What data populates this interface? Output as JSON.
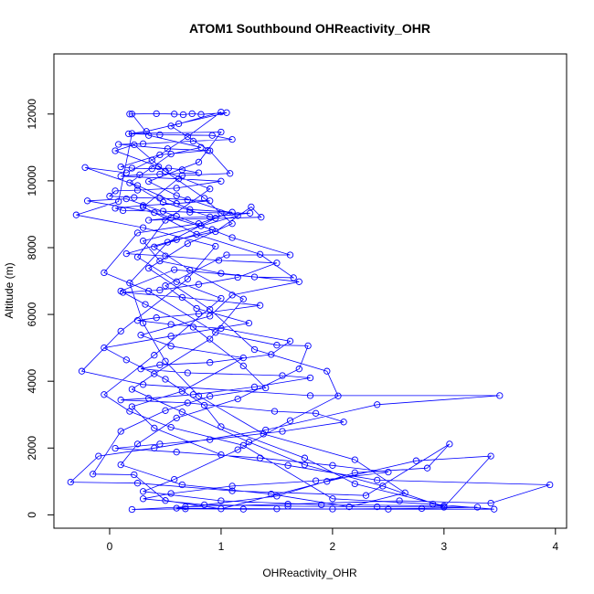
{
  "chart_data": {
    "type": "line",
    "title": "ATOM1 Southbound OHReactivity_OHR",
    "xlabel": "OHReactivity_OHR",
    "ylabel": "Altitude (m)",
    "xlim": [
      -0.5,
      4.1
    ],
    "ylim": [
      -400,
      13800
    ],
    "xticks": [
      0,
      1,
      2,
      3,
      4
    ],
    "yticks": [
      0,
      2000,
      4000,
      6000,
      8000,
      10000,
      12000
    ],
    "grid": false,
    "legend": "none",
    "color": "#0000ff",
    "series": [
      {
        "points": [
          [
            0.18,
            12000
          ],
          [
            0.42,
            12010
          ],
          [
            0.58,
            12000
          ],
          [
            0.66,
            11980
          ],
          [
            0.74,
            12010
          ],
          [
            0.82,
            11990
          ],
          [
            1.05,
            12040
          ],
          [
            0.62,
            11710
          ],
          [
            0.33,
            11480
          ],
          [
            0.17,
            11410
          ],
          [
            0.45,
            11380
          ],
          [
            0.92,
            11360
          ],
          [
            1.1,
            11240
          ],
          [
            0.75,
            11190
          ],
          [
            0.3,
            11110
          ],
          [
            0.08,
            11090
          ],
          [
            0.52,
            10960
          ],
          [
            0.88,
            10910
          ],
          [
            0.45,
            10780
          ],
          [
            0.1,
            10420
          ],
          [
            0.2,
            10380
          ],
          [
            0.38,
            10360
          ],
          [
            0.53,
            10380
          ],
          [
            0.65,
            10330
          ],
          [
            0.8,
            10240
          ],
          [
            0.45,
            10200
          ],
          [
            0.27,
            10180
          ],
          [
            0.1,
            10140
          ],
          [
            0.62,
            10060
          ],
          [
            1.0,
            9990
          ],
          [
            0.6,
            9780
          ],
          [
            0.25,
            9720
          ],
          [
            0.05,
            9700
          ],
          [
            0.0,
            9540
          ],
          [
            0.22,
            9500
          ],
          [
            0.45,
            9480
          ],
          [
            0.7,
            9430
          ],
          [
            0.9,
            9400
          ],
          [
            0.6,
            9320
          ],
          [
            0.3,
            9260
          ],
          [
            0.05,
            9180
          ],
          [
            0.12,
            9110
          ],
          [
            0.48,
            9090
          ],
          [
            0.72,
            9060
          ],
          [
            1.0,
            9040
          ],
          [
            1.26,
            9030
          ],
          [
            0.9,
            8920
          ],
          [
            0.55,
            8890
          ],
          [
            0.35,
            8820
          ],
          [
            1.36,
            8910
          ],
          [
            1.27,
            9220
          ],
          [
            0.95,
            8480
          ],
          [
            0.6,
            8240
          ],
          [
            0.15,
            7820
          ],
          [
            0.5,
            7750
          ],
          [
            0.98,
            7620
          ],
          [
            1.5,
            7540
          ],
          [
            1.15,
            7110
          ],
          [
            0.8,
            6900
          ],
          [
            0.45,
            6730
          ],
          [
            0.12,
            6660
          ],
          [
            0.65,
            6510
          ],
          [
            1.35,
            6270
          ],
          [
            0.8,
            6020
          ],
          [
            0.42,
            5900
          ],
          [
            0.25,
            5820
          ],
          [
            0.55,
            5700
          ],
          [
            1.0,
            5580
          ],
          [
            1.62,
            5200
          ],
          [
            1.45,
            4800
          ],
          [
            0.9,
            4560
          ],
          [
            0.45,
            4490
          ],
          [
            0.28,
            4370
          ],
          [
            0.7,
            4250
          ],
          [
            1.55,
            4170
          ],
          [
            1.8,
            4100
          ],
          [
            1.3,
            3830
          ],
          [
            0.75,
            3600
          ],
          [
            0.35,
            3490
          ],
          [
            0.1,
            3440
          ],
          [
            0.7,
            3350
          ],
          [
            1.48,
            3100
          ],
          [
            1.85,
            3040
          ],
          [
            2.1,
            2780
          ],
          [
            1.55,
            2500
          ],
          [
            0.9,
            2250
          ],
          [
            0.45,
            2120
          ],
          [
            0.05,
            1990
          ],
          [
            0.6,
            1880
          ],
          [
            1.35,
            1700
          ],
          [
            2.0,
            1480
          ],
          [
            2.5,
            1280
          ],
          [
            1.85,
            1020
          ],
          [
            1.1,
            860
          ],
          [
            0.55,
            640
          ],
          [
            0.3,
            480
          ],
          [
            0.85,
            300
          ],
          [
            1.6,
            260
          ],
          [
            2.4,
            240
          ],
          [
            3.3,
            230
          ],
          [
            2.8,
            190
          ],
          [
            2.0,
            175
          ],
          [
            1.2,
            170
          ],
          [
            0.68,
            180
          ],
          [
            0.2,
            160
          ],
          [
            0.68,
            240
          ],
          [
            1.6,
            320
          ],
          [
            2.6,
            420
          ],
          [
            3.42,
            350
          ],
          [
            3.95,
            900
          ],
          [
            2.4,
            1040
          ],
          [
            1.6,
            1480
          ],
          [
            1.0,
            1800
          ],
          [
            0.4,
            2600
          ],
          [
            0.2,
            3240
          ],
          [
            0.65,
            3700
          ],
          [
            1.2,
            4700
          ],
          [
            0.55,
            5050
          ],
          [
            0.28,
            5380
          ],
          [
            0.9,
            5950
          ],
          [
            1.1,
            6580
          ],
          [
            1.7,
            6980
          ],
          [
            1.0,
            7230
          ],
          [
            0.45,
            7600
          ],
          [
            0.3,
            8200
          ],
          [
            0.82,
            8650
          ],
          [
            1.15,
            8960
          ],
          [
            0.6,
            9560
          ],
          [
            0.35,
            9980
          ],
          [
            0.8,
            10560
          ],
          [
            1.0,
            11460
          ],
          [
            0.2,
            11420
          ],
          [
            0.08,
            9380
          ],
          [
            -0.3,
            8980
          ],
          [
            0.3,
            8600
          ],
          [
            0.95,
            8040
          ],
          [
            0.7,
            7060
          ],
          [
            0.1,
            5500
          ],
          [
            -0.25,
            4300
          ],
          [
            0.3,
            3900
          ],
          [
            1.8,
            3570
          ],
          [
            3.5,
            3570
          ],
          [
            2.4,
            3300
          ],
          [
            1.4,
            2540
          ],
          [
            0.4,
            2000
          ],
          [
            -0.1,
            1760
          ],
          [
            -0.35,
            980
          ],
          [
            0.25,
            950
          ],
          [
            1.1,
            720
          ],
          [
            2.3,
            580
          ],
          [
            3.05,
            2120
          ],
          [
            2.85,
            1400
          ],
          [
            2.2,
            1260
          ],
          [
            1.5,
            560
          ],
          [
            0.6,
            200
          ],
          [
            1.5,
            180
          ],
          [
            2.5,
            170
          ],
          [
            3.45,
            170
          ],
          [
            2.9,
            320
          ],
          [
            2.0,
            480
          ],
          [
            1.2,
            2080
          ],
          [
            0.55,
            2620
          ],
          [
            0.18,
            3100
          ],
          [
            -0.05,
            3600
          ],
          [
            0.4,
            4780
          ],
          [
            1.0,
            6480
          ],
          [
            0.6,
            6980
          ],
          [
            0.25,
            7720
          ],
          [
            0.5,
            8820
          ],
          [
            0.9,
            9760
          ],
          [
            0.5,
            10280
          ],
          [
            0.22,
            11080
          ],
          [
            0.05,
            10900
          ],
          [
            0.44,
            10420
          ],
          [
            0.85,
            9480
          ],
          [
            1.1,
            8720
          ],
          [
            0.7,
            8120
          ],
          [
            0.35,
            7380
          ],
          [
            0.9,
            6150
          ],
          [
            1.3,
            4950
          ],
          [
            1.95,
            4300
          ],
          [
            2.05,
            3560
          ],
          [
            1.62,
            2820
          ],
          [
            1.15,
            1950
          ],
          [
            0.58,
            1060
          ],
          [
            0.3,
            700
          ],
          [
            1.0,
            420
          ],
          [
            1.9,
            300
          ],
          [
            3.0,
            270
          ],
          [
            2.2,
            930
          ],
          [
            1.75,
            1700
          ],
          [
            1.0,
            2640
          ],
          [
            0.85,
            3280
          ],
          [
            0.5,
            4060
          ],
          [
            0.15,
            4640
          ],
          [
            -0.05,
            5000
          ],
          [
            0.55,
            5350
          ],
          [
            1.25,
            5740
          ],
          [
            0.78,
            6180
          ],
          [
            0.5,
            6860
          ],
          [
            1.05,
            7780
          ],
          [
            1.62,
            7780
          ],
          [
            1.1,
            8300
          ],
          [
            0.6,
            8940
          ],
          [
            0.15,
            9460
          ],
          [
            -0.2,
            9400
          ],
          [
            0.4,
            9050
          ],
          [
            0.92,
            8540
          ],
          [
            0.4,
            8020
          ],
          [
            0.72,
            7320
          ],
          [
            1.2,
            6460
          ],
          [
            0.9,
            5260
          ],
          [
            0.4,
            4220
          ],
          [
            0.2,
            3760
          ],
          [
            0.65,
            3080
          ],
          [
            1.25,
            2180
          ],
          [
            1.75,
            1500
          ],
          [
            2.45,
            860
          ],
          [
            3.0,
            230
          ],
          [
            3.42,
            1760
          ],
          [
            2.75,
            1620
          ],
          [
            1.95,
            1000
          ],
          [
            1.0,
            180
          ],
          [
            0.5,
            430
          ],
          [
            0.22,
            1200
          ],
          [
            -0.15,
            1220
          ],
          [
            0.1,
            2500
          ],
          [
            0.5,
            3120
          ],
          [
            0.9,
            3550
          ],
          [
            1.4,
            3800
          ],
          [
            1.2,
            4460
          ],
          [
            0.75,
            5620
          ],
          [
            0.32,
            6300
          ],
          [
            0.1,
            6700
          ],
          [
            0.58,
            7340
          ],
          [
            1.3,
            7120
          ],
          [
            1.65,
            7100
          ],
          [
            1.35,
            7800
          ],
          [
            0.78,
            8400
          ],
          [
            0.3,
            9220
          ],
          [
            0.65,
            10160
          ],
          [
            1.08,
            10220
          ],
          [
            0.9,
            10900
          ],
          [
            0.55,
            11640
          ],
          [
            1.0,
            12060
          ],
          [
            0.7,
            11320
          ],
          [
            0.38,
            10620
          ],
          [
            0.15,
            10240
          ],
          [
            -0.22,
            10400
          ],
          [
            0.25,
            9860
          ],
          [
            0.72,
            9140
          ],
          [
            1.1,
            9060
          ],
          [
            0.8,
            8720
          ],
          [
            0.25,
            8440
          ],
          [
            -0.05,
            7250
          ],
          [
            0.35,
            6700
          ],
          [
            0.95,
            5460
          ],
          [
            1.5,
            5080
          ],
          [
            1.78,
            5060
          ],
          [
            1.7,
            4370
          ],
          [
            1.15,
            3470
          ],
          [
            0.6,
            2900
          ],
          [
            0.25,
            2120
          ],
          [
            0.1,
            1500
          ],
          [
            0.65,
            900
          ],
          [
            1.45,
            620
          ],
          [
            2.15,
            240
          ],
          [
            2.65,
            660
          ],
          [
            2.2,
            1650
          ],
          [
            1.38,
            2420
          ],
          [
            0.8,
            3560
          ],
          [
            0.5,
            4600
          ],
          [
            0.3,
            5740
          ],
          [
            0.18,
            6940
          ],
          [
            0.52,
            8160
          ],
          [
            0.95,
            8880
          ],
          [
            0.48,
            9360
          ],
          [
            0.18,
            9940
          ],
          [
            0.55,
            10800
          ],
          [
            0.82,
            11000
          ],
          [
            0.35,
            11360
          ],
          [
            0.2,
            12000
          ]
        ]
      }
    ]
  }
}
